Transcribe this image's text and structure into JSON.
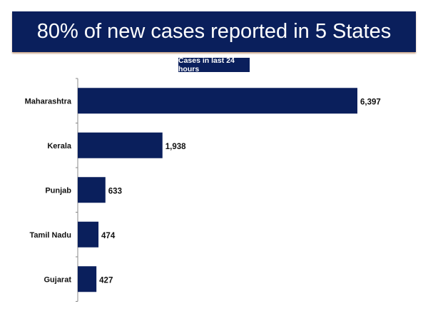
{
  "chart_data": {
    "type": "bar",
    "orientation": "horizontal",
    "title": "80% of new cases reported in 5 States",
    "subtitle": "Cases in last 24 hours",
    "categories": [
      "Maharashtra",
      "Kerala",
      "Punjab",
      "Tamil Nadu",
      "Gujarat"
    ],
    "values": [
      6397,
      1938,
      633,
      474,
      427
    ],
    "labels": [
      "6,397",
      "1,938",
      "633",
      "474",
      "427"
    ],
    "bar_color": "#0a1f5c",
    "grid": false,
    "xlabel": "",
    "ylabel": ""
  }
}
